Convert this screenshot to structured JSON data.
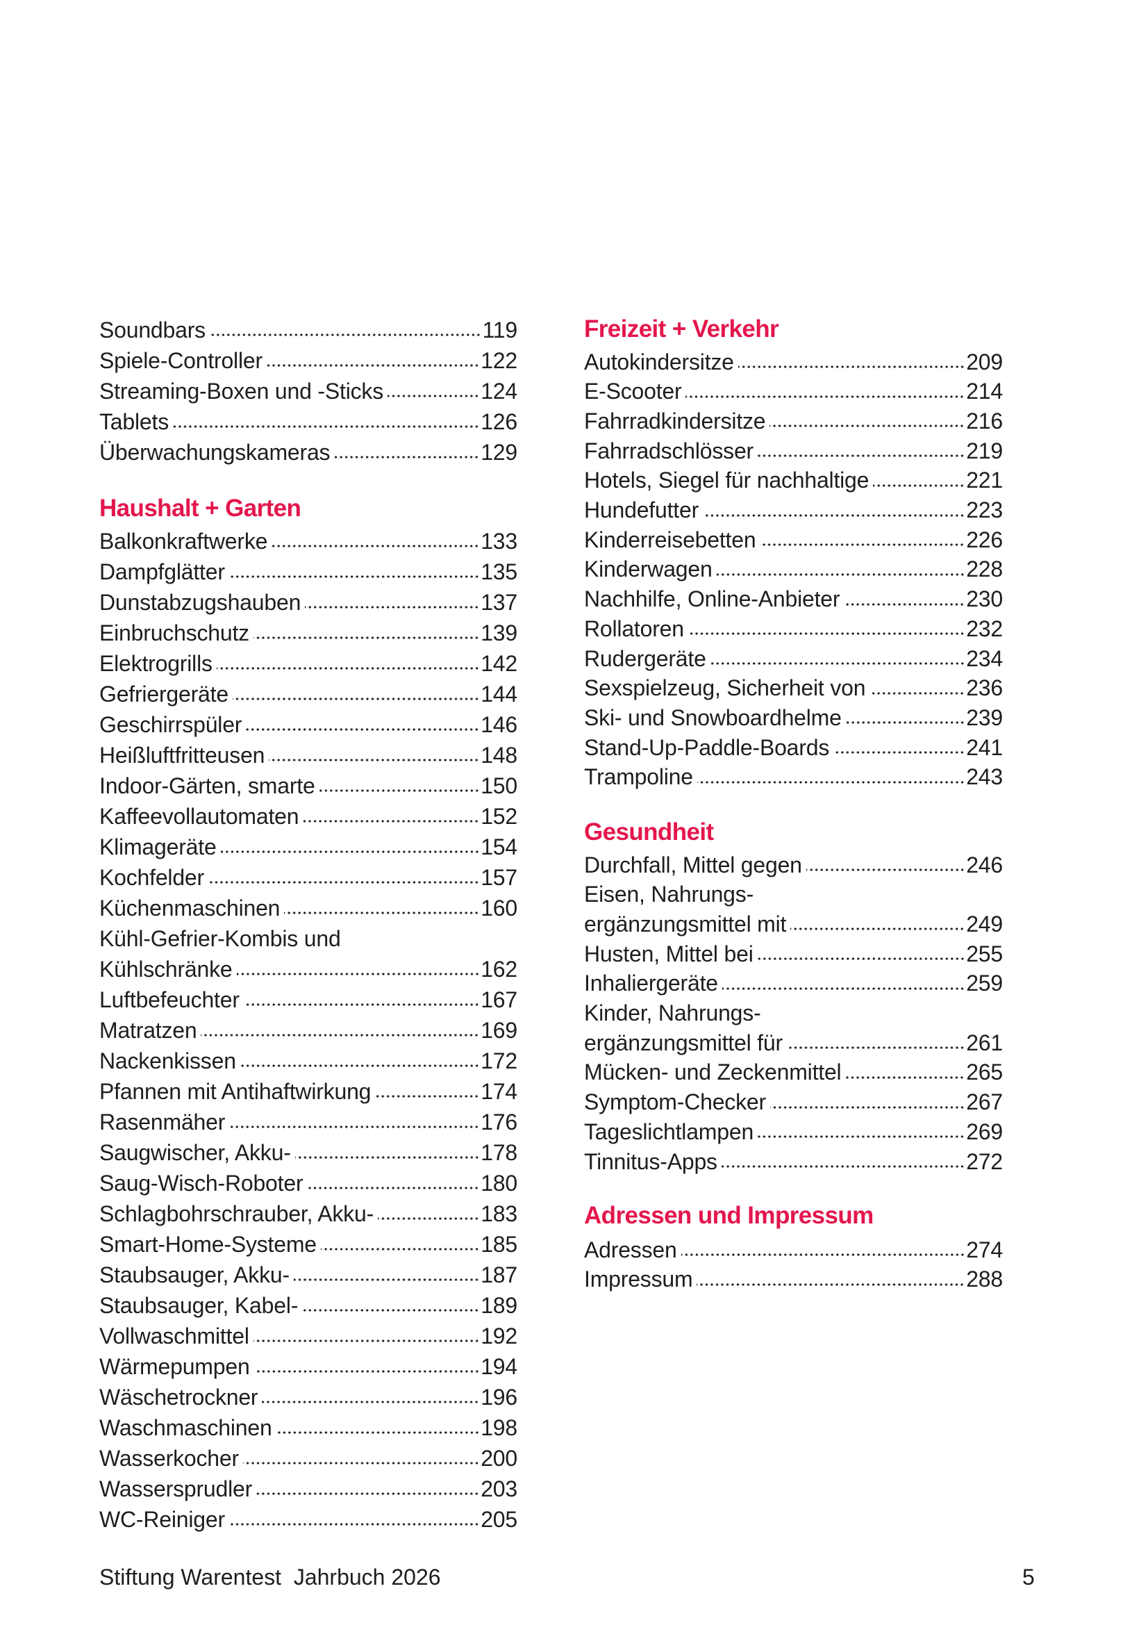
{
  "left_column": [
    {
      "type": "items",
      "items": [
        {
          "label": "Soundbars",
          "page": "119"
        },
        {
          "label": "Spiele-Controller",
          "page": "122"
        },
        {
          "label": "Streaming-Boxen und -Sticks",
          "page": "124"
        },
        {
          "label": "Tablets",
          "page": "126"
        },
        {
          "label": "Überwachungskameras",
          "page": "129"
        }
      ]
    },
    {
      "type": "section",
      "heading": "Haushalt + Garten",
      "items": [
        {
          "label": "Balkonkraftwerke",
          "page": "133"
        },
        {
          "label": "Dampfglätter",
          "page": "135"
        },
        {
          "label": "Dunstabzugshauben",
          "page": "137"
        },
        {
          "label": "Einbruchschutz",
          "page": "139"
        },
        {
          "label": "Elektrogrills",
          "page": "142"
        },
        {
          "label": "Gefriergeräte",
          "page": "144"
        },
        {
          "label": "Geschirrspüler",
          "page": "146"
        },
        {
          "label": "Heißluftfritteusen",
          "page": "148"
        },
        {
          "label": "Indoor-Gärten, smarte",
          "page": "150"
        },
        {
          "label": "Kaffeevollautomaten",
          "page": "152"
        },
        {
          "label": "Klimageräte",
          "page": "154"
        },
        {
          "label": "Kochfelder",
          "page": "157"
        },
        {
          "label": "Küchenmaschinen",
          "page": "160"
        },
        {
          "label": "Kühl-Gefrier-Kombis und"
        },
        {
          "label": "Kühlschränke",
          "page": "162"
        },
        {
          "label": "Luftbefeuchter",
          "page": "167"
        },
        {
          "label": "Matratzen",
          "page": "169"
        },
        {
          "label": "Nackenkissen",
          "page": "172"
        },
        {
          "label": "Pfannen mit Antihaftwirkung",
          "page": "174"
        },
        {
          "label": "Rasenmäher",
          "page": "176"
        },
        {
          "label": "Saugwischer, Akku-",
          "page": "178"
        },
        {
          "label": "Saug-Wisch-Roboter",
          "page": "180"
        },
        {
          "label": "Schlagbohrschrauber, Akku-",
          "page": "183"
        },
        {
          "label": "Smart-Home-Systeme",
          "page": "185"
        },
        {
          "label": "Staubsauger, Akku-",
          "page": "187"
        },
        {
          "label": "Staubsauger, Kabel-",
          "page": "189"
        },
        {
          "label": "Vollwaschmittel",
          "page": "192"
        },
        {
          "label": "Wärmepumpen",
          "page": "194"
        },
        {
          "label": "Wäschetrockner",
          "page": "196"
        },
        {
          "label": "Waschmaschinen",
          "page": "198"
        },
        {
          "label": "Wasserkocher",
          "page": "200"
        },
        {
          "label": "Wassersprudler",
          "page": "203"
        },
        {
          "label": "WC-Reiniger",
          "page": "205"
        }
      ]
    }
  ],
  "right_column": [
    {
      "type": "section",
      "heading": "Freizeit + Verkehr",
      "items": [
        {
          "label": "Autokindersitze",
          "page": "209"
        },
        {
          "label": "E-Scooter",
          "page": "214"
        },
        {
          "label": "Fahrradkindersitze",
          "page": "216"
        },
        {
          "label": "Fahrradschlösser",
          "page": "219"
        },
        {
          "label": "Hotels, Siegel für nachhaltige",
          "page": "221"
        },
        {
          "label": "Hundefutter",
          "page": "223"
        },
        {
          "label": "Kinderreisebetten",
          "page": "226"
        },
        {
          "label": "Kinderwagen",
          "page": "228"
        },
        {
          "label": "Nachhilfe, Online-Anbieter",
          "page": "230"
        },
        {
          "label": "Rollatoren",
          "page": "232"
        },
        {
          "label": "Rudergeräte",
          "page": "234"
        },
        {
          "label": "Sexspielzeug, Sicherheit von",
          "page": "236"
        },
        {
          "label": "Ski- und Snowboardhelme",
          "page": "239"
        },
        {
          "label": "Stand-Up-Paddle-Boards",
          "page": "241"
        },
        {
          "label": "Trampoline",
          "page": "243"
        }
      ]
    },
    {
      "type": "section",
      "heading": "Gesundheit",
      "items": [
        {
          "label": "Durchfall, Mittel gegen",
          "page": "246"
        },
        {
          "label": "Eisen, Nahrungs-"
        },
        {
          "label": "ergänzungsmittel mit",
          "page": "249"
        },
        {
          "label": "Husten, Mittel bei",
          "page": "255"
        },
        {
          "label": "Inhaliergeräte",
          "page": "259"
        },
        {
          "label": "Kinder, Nahrungs-"
        },
        {
          "label": "ergänzungsmittel für",
          "page": "261"
        },
        {
          "label": "Mücken- und Zeckenmittel",
          "page": "265"
        },
        {
          "label": "Symptom-Checker",
          "page": "267"
        },
        {
          "label": "Tageslichtlampen",
          "page": "269"
        },
        {
          "label": "Tinnitus-Apps",
          "page": "272"
        }
      ]
    },
    {
      "type": "section",
      "heading": "Adressen und Impressum",
      "items": [
        {
          "label": "Adressen",
          "page": "274"
        },
        {
          "label": "Impressum",
          "page": "288"
        }
      ]
    }
  ],
  "footer": {
    "title": "Stiftung Warentest  Jahrbuch 2026",
    "page_number": "5"
  },
  "colors": {
    "heading": "#e4164d",
    "text": "#1e1e1e"
  }
}
